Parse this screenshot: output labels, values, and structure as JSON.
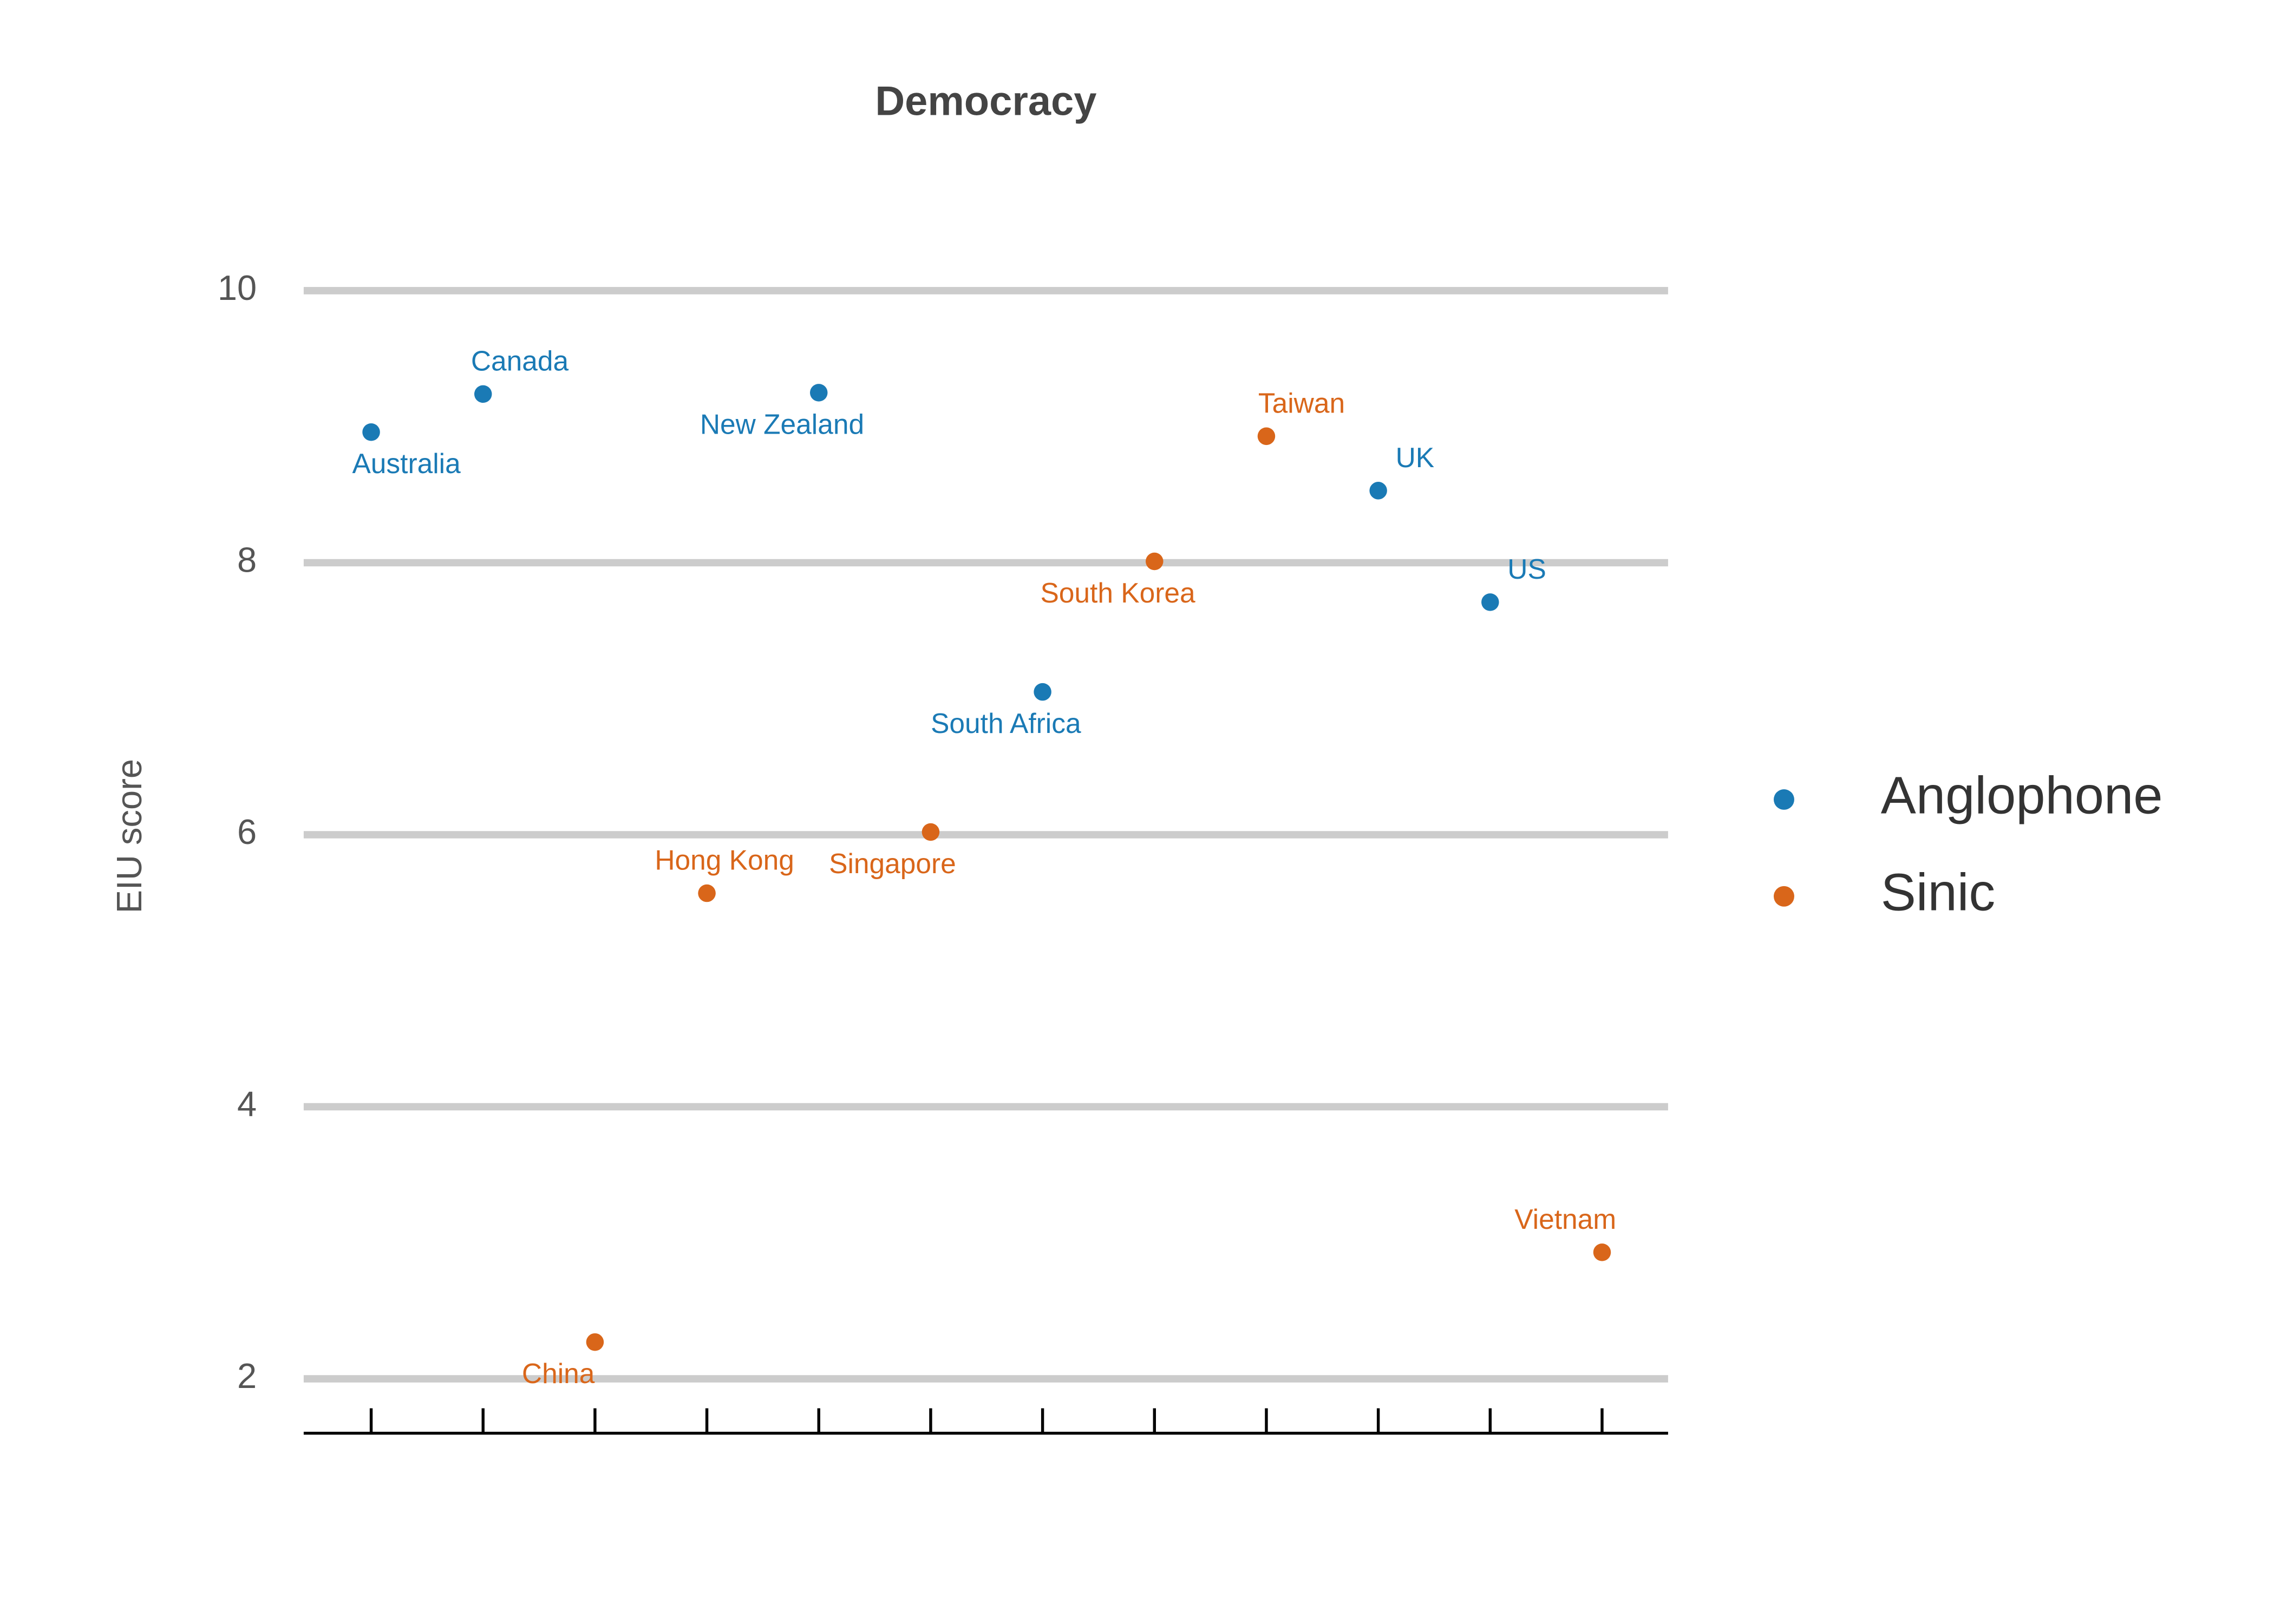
{
  "chart_data": {
    "type": "scatter",
    "title": "Democracy",
    "y_label": "EIU score",
    "categories": [
      "Australia",
      "Canada",
      "China",
      "Hong Kong",
      "New Zealand",
      "Singapore",
      "South Africa",
      "South Korea",
      "Taiwan",
      "UK",
      "US",
      "Vietnam"
    ],
    "series": [
      {
        "name": "Anglophone",
        "color": "#1a7ab5",
        "values": [
          8.96,
          9.24,
          null,
          null,
          9.25,
          null,
          7.05,
          null,
          null,
          8.53,
          7.71,
          null
        ]
      },
      {
        "name": "Sinic",
        "color": "#d9661a",
        "values": [
          null,
          null,
          2.27,
          5.57,
          null,
          6.02,
          null,
          8.01,
          8.93,
          null,
          null,
          2.93
        ]
      }
    ],
    "ylim": [
      1.6,
      10.4
    ],
    "yticks": [
      2,
      4,
      6,
      8,
      10
    ],
    "grid": true
  }
}
